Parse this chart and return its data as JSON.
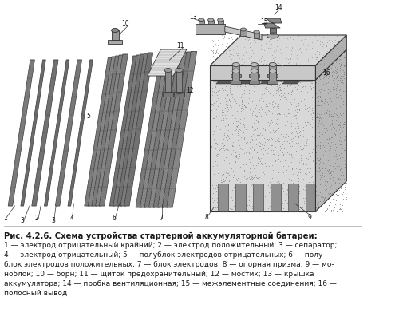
{
  "bg_color": "#ffffff",
  "border_color": "#aaaaaa",
  "dark_color": "#1a1a1a",
  "mid_color": "#555555",
  "light_color": "#cccccc",
  "speckle_color": "#888888",
  "title": "Рис. 4.2.6. Схема устройства стартерной аккумуляторной батареи:",
  "caption_lines": [
    "1 — электрод отрицательный крайний; 2 — электрод положительный; 3 — сепаратор;",
    "4 — электрод отрицательный; 5 — полублок электродов отрицательных; 6 — полу-",
    "блок электродов положительных; 7 — блок электродов; 8 — опорная призма; 9 — мо-",
    "ноблок; 10 — борн; 11 — щиток предохранительный; 12 — мостик; 13 — крышка",
    "аккумулятора; 14 — пробка вентиляционная; 15 — межэлементные соединения; 16 —",
    "полосный вывод"
  ],
  "title_fontsize": 7.2,
  "caption_fontsize": 6.5
}
